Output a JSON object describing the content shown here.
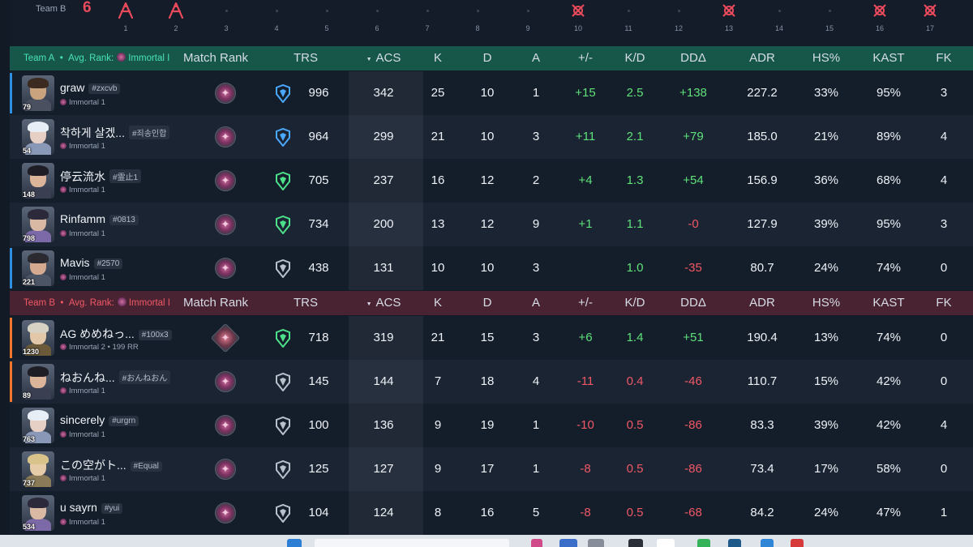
{
  "timeline": {
    "team_label": "Team B",
    "score": "6",
    "rounds": [
      {
        "n": "1",
        "mark": "b-win"
      },
      {
        "n": "2",
        "mark": "b-win"
      },
      {
        "n": "3",
        "mark": "none"
      },
      {
        "n": "4",
        "mark": "none"
      },
      {
        "n": "5",
        "mark": "none"
      },
      {
        "n": "6",
        "mark": "none"
      },
      {
        "n": "7",
        "mark": "none"
      },
      {
        "n": "8",
        "mark": "none"
      },
      {
        "n": "9",
        "mark": "none"
      },
      {
        "n": "10",
        "mark": "b-elim"
      },
      {
        "n": "11",
        "mark": "none"
      },
      {
        "n": "12",
        "mark": "none"
      },
      {
        "n": "13",
        "mark": "b-elim"
      },
      {
        "n": "14",
        "mark": "none"
      },
      {
        "n": "15",
        "mark": "none"
      },
      {
        "n": "16",
        "mark": "b-elim"
      },
      {
        "n": "17",
        "mark": "b-elim"
      }
    ]
  },
  "columns": {
    "match_rank": "Match Rank",
    "trs": "TRS",
    "acs": "ACS",
    "k": "K",
    "d": "D",
    "a": "A",
    "plus_minus": "+/-",
    "kd": "K/D",
    "dd": "DDΔ",
    "adr": "ADR",
    "hs": "HS%",
    "kast": "KAST",
    "fk": "FK"
  },
  "teams": [
    {
      "key": "a",
      "name": "Team A",
      "avg_rank_label": "Avg. Rank:",
      "avg_rank": "Immortal I",
      "accent": "#2f8fe0",
      "players": [
        {
          "name": "graw",
          "tag": "#zxcvb",
          "rank": "Immortal 1",
          "level": "79",
          "trs_tier": "blue",
          "trs": "996",
          "acs": "342",
          "k": "25",
          "d": "10",
          "a": "1",
          "pm": "+15",
          "kd": "2.5",
          "dd": "+138",
          "adr": "227.2",
          "hs": "33%",
          "kast": "95%",
          "fk": "3",
          "accent": true,
          "skin": "#c9a27e",
          "hair": "#3a2a20",
          "outfit": "#4a5060"
        },
        {
          "name": "착하게 살겠...",
          "tag": "#죄송인합",
          "rank": "Immortal 1",
          "level": "54",
          "trs_tier": "blue",
          "trs": "964",
          "acs": "299",
          "k": "21",
          "d": "10",
          "a": "3",
          "pm": "+11",
          "kd": "2.1",
          "dd": "+79",
          "adr": "185.0",
          "hs": "21%",
          "kast": "89%",
          "fk": "4",
          "accent": false,
          "skin": "#e6cfc4",
          "hair": "#e8eef5",
          "outfit": "#8a98b8"
        },
        {
          "name": "停云流水",
          "tag": "#霊止1",
          "rank": "Immortal 1",
          "level": "148",
          "trs_tier": "green",
          "trs": "705",
          "acs": "237",
          "k": "16",
          "d": "12",
          "a": "2",
          "pm": "+4",
          "kd": "1.3",
          "dd": "+54",
          "adr": "156.9",
          "hs": "36%",
          "kast": "68%",
          "fk": "4",
          "accent": false,
          "skin": "#dcb49a",
          "hair": "#1e1c24",
          "outfit": "#3b3f52"
        },
        {
          "name": "Rinfamm",
          "tag": "#0813",
          "rank": "Immortal 1",
          "level": "798",
          "trs_tier": "green",
          "trs": "734",
          "acs": "200",
          "k": "13",
          "d": "12",
          "a": "9",
          "pm": "+1",
          "kd": "1.1",
          "dd": "-0",
          "adr": "127.9",
          "hs": "39%",
          "kast": "95%",
          "fk": "3",
          "accent": false,
          "skin": "#d9b9a4",
          "hair": "#2c2a3a",
          "outfit": "#7c6aa8"
        },
        {
          "name": "Mavis",
          "tag": "#2570",
          "rank": "Immortal 1",
          "level": "221",
          "trs_tier": "gray",
          "trs": "438",
          "acs": "131",
          "k": "10",
          "d": "10",
          "a": "3",
          "pm": "",
          "kd": "1.0",
          "dd": "-35",
          "adr": "80.7",
          "hs": "24%",
          "kast": "74%",
          "fk": "0",
          "accent": true,
          "skin": "#d4ab90",
          "hair": "#2a2a30",
          "outfit": "#4c5566"
        }
      ]
    },
    {
      "key": "b",
      "name": "Team B",
      "avg_rank_label": "Avg. Rank:",
      "avg_rank": "Immortal I",
      "accent": "#f0782c",
      "players": [
        {
          "name": "AG めめねっ...",
          "tag": "#100x3",
          "rank": "Immortal 2 • 199 RR",
          "level": "1230",
          "trs_tier": "green",
          "trs": "718",
          "acs": "319",
          "k": "21",
          "d": "15",
          "a": "3",
          "pm": "+6",
          "kd": "1.4",
          "dd": "+51",
          "adr": "190.4",
          "hs": "13%",
          "kast": "74%",
          "fk": "0",
          "accent": true,
          "ascendant": true,
          "skin": "#e2c8a8",
          "hair": "#d8d2c4",
          "outfit": "#6a5a3a"
        },
        {
          "name": "ねおんね...",
          "tag": "#おんねおん",
          "rank": "Immortal 1",
          "level": "89",
          "trs_tier": "gray",
          "trs": "145",
          "acs": "144",
          "k": "7",
          "d": "18",
          "a": "4",
          "pm": "-11",
          "kd": "0.4",
          "dd": "-46",
          "adr": "110.7",
          "hs": "15%",
          "kast": "42%",
          "fk": "0",
          "accent": true,
          "ascendant": false,
          "skin": "#dcb49a",
          "hair": "#1e1c24",
          "outfit": "#3b3f52"
        },
        {
          "name": "sincerely",
          "tag": "#urgrn",
          "rank": "Immortal 1",
          "level": "763",
          "trs_tier": "gray",
          "trs": "100",
          "acs": "136",
          "k": "9",
          "d": "19",
          "a": "1",
          "pm": "-10",
          "kd": "0.5",
          "dd": "-86",
          "adr": "83.3",
          "hs": "39%",
          "kast": "42%",
          "fk": "4",
          "accent": false,
          "ascendant": false,
          "skin": "#e6cfc4",
          "hair": "#e8eef5",
          "outfit": "#8a98b8"
        },
        {
          "name": "この空がト...",
          "tag": "#Equal",
          "rank": "Immortal 1",
          "level": "737",
          "trs_tier": "gray",
          "trs": "125",
          "acs": "127",
          "k": "9",
          "d": "17",
          "a": "1",
          "pm": "-8",
          "kd": "0.5",
          "dd": "-86",
          "adr": "73.4",
          "hs": "17%",
          "kast": "58%",
          "fk": "0",
          "accent": false,
          "ascendant": false,
          "skin": "#e6cba8",
          "hair": "#d9c38a",
          "outfit": "#8a7a58"
        },
        {
          "name": "u sayrn",
          "tag": "#yui",
          "rank": "Immortal 1",
          "level": "534",
          "trs_tier": "gray",
          "trs": "104",
          "acs": "124",
          "k": "8",
          "d": "16",
          "a": "5",
          "pm": "-8",
          "kd": "0.5",
          "dd": "-68",
          "adr": "84.2",
          "hs": "24%",
          "kast": "47%",
          "fk": "1",
          "accent": false,
          "ascendant": false,
          "skin": "#d9b9a4",
          "hair": "#2c2a3a",
          "outfit": "#7c6aa8"
        }
      ]
    }
  ],
  "colors": {
    "team_a_header": "#16574a",
    "team_b_header": "#4a2332",
    "positive": "#5ee27a",
    "negative": "#f05866"
  }
}
